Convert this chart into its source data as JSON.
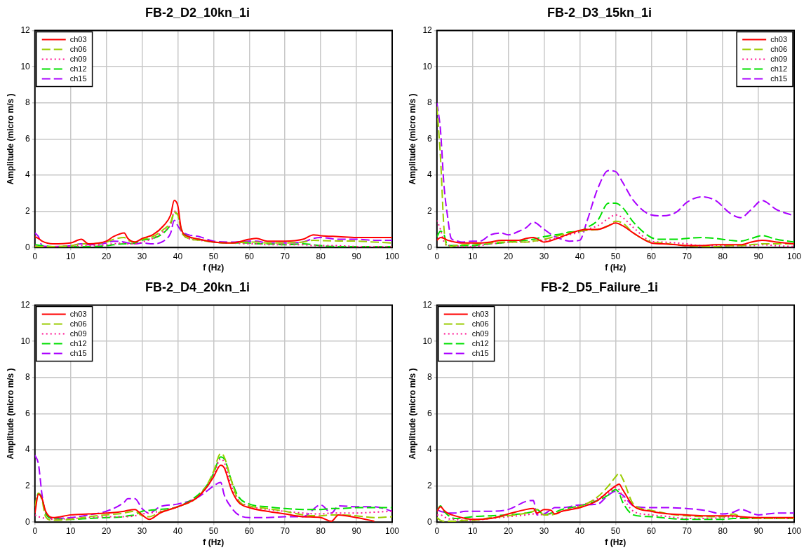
{
  "chart_data": [
    {
      "type": "line",
      "title": "FB-2_D2_10kn_1i",
      "xlabel": "f (Hz)",
      "ylabel": "Amplitude (micro m/s )",
      "xlim": [
        0,
        100
      ],
      "xticks": [
        0,
        10,
        20,
        30,
        40,
        50,
        60,
        70,
        80,
        90,
        100
      ],
      "ylim": [
        0,
        12
      ],
      "yticks": [
        0,
        2,
        4,
        6,
        8,
        10,
        12
      ],
      "grid": true,
      "legend": "top left",
      "x": [
        0,
        1,
        2,
        5,
        10,
        13,
        15,
        20,
        22,
        25,
        26,
        28,
        30,
        33,
        36,
        38,
        39,
        40,
        41,
        43,
        46,
        50,
        55,
        60,
        62,
        65,
        70,
        75,
        78,
        80,
        85,
        90,
        95,
        100
      ],
      "series": [
        {
          "name": "ch03",
          "color": "#ff0000",
          "line_style": "solid",
          "values": [
            0.6,
            0.5,
            0.35,
            0.2,
            0.25,
            0.45,
            0.2,
            0.35,
            0.6,
            0.8,
            0.5,
            0.3,
            0.5,
            0.7,
            1.2,
            1.8,
            2.6,
            2.3,
            1.0,
            0.6,
            0.45,
            0.3,
            0.25,
            0.45,
            0.5,
            0.35,
            0.35,
            0.45,
            0.7,
            0.65,
            0.6,
            0.55,
            0.55,
            0.55
          ]
        },
        {
          "name": "ch06",
          "color": "#99cc00",
          "line_style": "dashed",
          "values": [
            0.05,
            0.05,
            0.05,
            0.05,
            0.1,
            0.2,
            0.2,
            0.3,
            0.45,
            0.55,
            0.4,
            0.3,
            0.45,
            0.6,
            1.0,
            1.4,
            1.95,
            1.8,
            0.9,
            0.5,
            0.4,
            0.3,
            0.25,
            0.3,
            0.3,
            0.25,
            0.25,
            0.3,
            0.4,
            0.38,
            0.36,
            0.35,
            0.3,
            0.25
          ]
        },
        {
          "name": "ch09",
          "color": "#ff1493",
          "line_style": "dotted",
          "values": [
            0.1,
            0.05,
            0.05,
            0.05,
            0.05,
            0.1,
            0.1,
            0.15,
            0.2,
            0.25,
            0.2,
            0.2,
            0.3,
            0.5,
            0.9,
            1.3,
            2.0,
            1.9,
            0.9,
            0.5,
            0.4,
            0.3,
            0.25,
            0.2,
            0.2,
            0.15,
            0.15,
            0.15,
            0.1,
            0.1,
            0.1,
            0.05,
            0.05,
            0.05
          ]
        },
        {
          "name": "ch12",
          "color": "#00e000",
          "line_style": "dashed",
          "values": [
            0.15,
            0.12,
            0.1,
            0.05,
            0.05,
            0.05,
            0.05,
            0.1,
            0.15,
            0.2,
            0.2,
            0.25,
            0.4,
            0.5,
            0.8,
            1.3,
            1.9,
            1.8,
            1.0,
            0.6,
            0.45,
            0.3,
            0.25,
            0.25,
            0.2,
            0.2,
            0.15,
            0.2,
            0.15,
            0.1,
            0.05,
            0.05,
            0.05,
            0.05
          ]
        },
        {
          "name": "ch15",
          "color": "#aa00ff",
          "line_style": "dashed",
          "values": [
            0.8,
            0.6,
            0.1,
            0.05,
            0.1,
            0.2,
            0.15,
            0.25,
            0.35,
            0.3,
            0.25,
            0.2,
            0.25,
            0.2,
            0.35,
            0.8,
            1.5,
            1.2,
            0.9,
            0.7,
            0.6,
            0.35,
            0.3,
            0.35,
            0.35,
            0.25,
            0.25,
            0.3,
            0.5,
            0.55,
            0.45,
            0.45,
            0.4,
            0.4
          ]
        }
      ]
    },
    {
      "type": "line",
      "title": "FB-2_D3_15kn_1i",
      "xlabel": "f (Hz)",
      "ylabel": "Amplitude (micro m/s )",
      "xlim": [
        0,
        100
      ],
      "xticks": [
        0,
        10,
        20,
        30,
        40,
        50,
        60,
        70,
        80,
        90,
        100
      ],
      "ylim": [
        0,
        12
      ],
      "yticks": [
        0,
        2,
        4,
        6,
        8,
        10,
        12
      ],
      "grid": true,
      "legend": "top right",
      "x": [
        0,
        1,
        2,
        3,
        4,
        5,
        7,
        10,
        12,
        15,
        18,
        20,
        23,
        25,
        27,
        30,
        33,
        35,
        37,
        40,
        42,
        45,
        48,
        50,
        52,
        55,
        60,
        63,
        67,
        70,
        74,
        78,
        82,
        85,
        88,
        91,
        95,
        100
      ],
      "series": [
        {
          "name": "ch03",
          "color": "#ff0000",
          "line_style": "solid",
          "values": [
            0.4,
            0.55,
            0.5,
            0.4,
            0.35,
            0.3,
            0.25,
            0.25,
            0.25,
            0.3,
            0.4,
            0.4,
            0.4,
            0.5,
            0.55,
            0.3,
            0.45,
            0.6,
            0.75,
            0.95,
            1.0,
            1.0,
            1.2,
            1.35,
            1.2,
            0.8,
            0.25,
            0.2,
            0.15,
            0.1,
            0.1,
            0.15,
            0.15,
            0.15,
            0.3,
            0.4,
            0.3,
            0.2
          ]
        },
        {
          "name": "ch06",
          "color": "#99cc00",
          "line_style": "dashed",
          "values": [
            7.8,
            5.0,
            1.0,
            0.05,
            0.05,
            0.1,
            0.15,
            0.2,
            0.2,
            0.25,
            0.3,
            0.3,
            0.3,
            0.3,
            0.35,
            0.45,
            0.6,
            0.7,
            0.8,
            0.9,
            0.95,
            1.0,
            1.2,
            1.45,
            1.35,
            0.8,
            0.3,
            0.25,
            0.15,
            0.1,
            0.05,
            0.05,
            0.1,
            0.1,
            0.15,
            0.2,
            0.2,
            0.2
          ]
        },
        {
          "name": "ch09",
          "color": "#ff1493",
          "line_style": "dotted",
          "values": [
            1.5,
            1.0,
            0.3,
            0.1,
            0.1,
            0.1,
            0.05,
            0.05,
            0.1,
            0.2,
            0.25,
            0.3,
            0.3,
            0.3,
            0.35,
            0.4,
            0.5,
            0.6,
            0.7,
            0.85,
            1.0,
            1.2,
            1.6,
            1.8,
            1.65,
            1.1,
            0.35,
            0.3,
            0.25,
            0.2,
            0.1,
            0.1,
            0.1,
            0.1,
            0.1,
            0.15,
            0.1,
            0.05
          ]
        },
        {
          "name": "ch12",
          "color": "#00e000",
          "line_style": "dashed",
          "values": [
            0.6,
            0.9,
            0.7,
            0.1,
            0.1,
            0.1,
            0.1,
            0.1,
            0.15,
            0.2,
            0.25,
            0.3,
            0.35,
            0.4,
            0.45,
            0.6,
            0.7,
            0.75,
            0.85,
            0.9,
            1.1,
            1.5,
            2.45,
            2.45,
            2.2,
            1.4,
            0.55,
            0.45,
            0.45,
            0.5,
            0.55,
            0.5,
            0.4,
            0.35,
            0.5,
            0.65,
            0.45,
            0.3
          ]
        },
        {
          "name": "ch15",
          "color": "#aa00ff",
          "line_style": "dashed",
          "values": [
            8.0,
            6.5,
            3.4,
            1.7,
            0.5,
            0.4,
            0.3,
            0.35,
            0.35,
            0.7,
            0.8,
            0.7,
            0.9,
            1.1,
            1.4,
            1.0,
            0.6,
            0.45,
            0.35,
            0.4,
            1.45,
            3.25,
            4.25,
            4.2,
            3.6,
            2.6,
            1.8,
            1.75,
            1.95,
            2.5,
            2.8,
            2.6,
            1.9,
            1.65,
            2.1,
            2.6,
            2.1,
            1.75
          ]
        }
      ]
    },
    {
      "type": "line",
      "title": "FB-2_D4_20kn_1i",
      "xlabel": "f (Hz)",
      "ylabel": "Amplitude (micro m/s )",
      "xlim": [
        0,
        100
      ],
      "xticks": [
        0,
        10,
        20,
        30,
        40,
        50,
        60,
        70,
        80,
        90,
        100
      ],
      "ylim": [
        0,
        12
      ],
      "yticks": [
        0,
        2,
        4,
        6,
        8,
        10,
        12
      ],
      "grid": true,
      "legend": "top left",
      "x": [
        0,
        1,
        2,
        3,
        5,
        10,
        15,
        20,
        25,
        26,
        28,
        30,
        32,
        35,
        40,
        45,
        48,
        50,
        52,
        53,
        55,
        57,
        60,
        65,
        70,
        75,
        80,
        83,
        85,
        90,
        95,
        100
      ],
      "series": [
        {
          "name": "ch03",
          "color": "#ff0000",
          "line_style": "solid",
          "values": [
            0.5,
            1.55,
            1.3,
            0.6,
            0.25,
            0.4,
            0.45,
            0.5,
            0.6,
            0.65,
            0.7,
            0.4,
            0.15,
            0.5,
            0.85,
            1.3,
            1.9,
            2.5,
            3.15,
            3.0,
            1.8,
            1.1,
            0.8,
            0.6,
            0.45,
            0.3,
            0.25,
            0.05,
            0.4,
            0.25,
            0.05,
            null
          ]
        },
        {
          "name": "ch06",
          "color": "#99cc00",
          "line_style": "dashed",
          "values": [
            0.9,
            1.6,
            1.2,
            0.3,
            0.1,
            0.15,
            0.3,
            0.4,
            0.5,
            0.55,
            0.6,
            0.35,
            0.3,
            0.55,
            0.85,
            1.3,
            2.0,
            2.8,
            3.8,
            3.6,
            2.3,
            1.2,
            0.9,
            0.75,
            0.6,
            0.4,
            0.35,
            0.4,
            0.4,
            0.35,
            0.25,
            0.3
          ]
        },
        {
          "name": "ch09",
          "color": "#ff1493",
          "line_style": "dotted",
          "values": [
            0.4,
            0.3,
            0.25,
            0.2,
            0.15,
            0.2,
            0.25,
            0.3,
            0.3,
            0.3,
            0.35,
            0.45,
            0.5,
            0.6,
            0.85,
            1.3,
            1.9,
            2.6,
            3.5,
            3.3,
            2.0,
            1.2,
            0.9,
            0.7,
            0.6,
            0.5,
            0.45,
            0.5,
            0.5,
            0.5,
            0.55,
            0.6
          ]
        },
        {
          "name": "ch12",
          "color": "#00e000",
          "line_style": "dashed",
          "values": [
            0.8,
            1.6,
            1.3,
            0.5,
            0.2,
            0.15,
            0.2,
            0.25,
            0.3,
            0.35,
            0.4,
            0.6,
            0.65,
            0.7,
            0.85,
            1.4,
            2.0,
            2.7,
            3.6,
            3.5,
            2.3,
            1.4,
            1.0,
            0.85,
            0.75,
            0.7,
            0.7,
            0.75,
            0.75,
            0.8,
            0.8,
            0.8
          ]
        },
        {
          "name": "ch15",
          "color": "#aa00ff",
          "line_style": "dashed",
          "values": [
            3.7,
            3.2,
            1.5,
            0.5,
            0.2,
            0.25,
            0.4,
            0.6,
            1.1,
            1.3,
            1.3,
            0.75,
            0.5,
            0.85,
            1.0,
            1.3,
            1.7,
            2.0,
            2.2,
            1.5,
            0.8,
            0.4,
            0.25,
            0.25,
            0.3,
            0.3,
            0.95,
            0.5,
            0.9,
            0.85,
            0.85,
            0.6
          ]
        }
      ]
    },
    {
      "type": "line",
      "title": "FB-2_D5_Failure_1i",
      "xlabel": "f (Hz)",
      "ylabel": "Amplitude (micro m/s )",
      "xlim": [
        0,
        100
      ],
      "xticks": [
        0,
        10,
        20,
        30,
        40,
        50,
        60,
        70,
        80,
        90,
        100
      ],
      "ylim": [
        0,
        12
      ],
      "yticks": [
        0,
        2,
        4,
        6,
        8,
        10,
        12
      ],
      "grid": true,
      "legend": "top left",
      "x": [
        0,
        1,
        2,
        3,
        5,
        8,
        10,
        15,
        20,
        25,
        27,
        28,
        30,
        32,
        33,
        35,
        40,
        45,
        48,
        50,
        51,
        52,
        55,
        60,
        65,
        70,
        75,
        80,
        83,
        85,
        90,
        95,
        100
      ],
      "series": [
        {
          "name": "ch03",
          "color": "#ff0000",
          "line_style": "solid",
          "values": [
            0.6,
            0.85,
            0.65,
            0.5,
            0.35,
            0.2,
            0.15,
            0.2,
            0.45,
            0.7,
            0.75,
            0.5,
            0.7,
            0.65,
            0.45,
            0.6,
            0.8,
            1.2,
            1.7,
            2.0,
            2.1,
            1.8,
            0.9,
            0.6,
            0.45,
            0.4,
            0.35,
            0.35,
            0.35,
            0.3,
            0.25,
            0.25,
            0.25
          ]
        },
        {
          "name": "ch06",
          "color": "#99cc00",
          "line_style": "dashed",
          "values": [
            0.25,
            0.1,
            0.05,
            0.05,
            0.05,
            0.1,
            0.1,
            0.25,
            0.35,
            0.5,
            0.6,
            0.7,
            0.4,
            0.4,
            0.45,
            0.6,
            0.85,
            1.4,
            2.0,
            2.5,
            2.7,
            2.4,
            1.0,
            0.65,
            0.45,
            0.35,
            0.3,
            0.3,
            0.45,
            0.3,
            0.2,
            0.2,
            0.2
          ]
        },
        {
          "name": "ch09",
          "color": "#ff1493",
          "line_style": "dotted",
          "values": [
            0.4,
            0.4,
            0.3,
            0.2,
            0.15,
            0.1,
            0.1,
            0.2,
            0.3,
            0.4,
            0.45,
            0.45,
            0.4,
            0.45,
            0.45,
            0.6,
            0.9,
            1.3,
            1.6,
            1.9,
            1.8,
            1.4,
            0.6,
            0.4,
            0.3,
            0.2,
            0.2,
            0.25,
            0.3,
            0.25,
            0.25,
            0.2,
            0.2
          ]
        },
        {
          "name": "ch12",
          "color": "#00e000",
          "line_style": "dashed",
          "values": [
            0.6,
            0.9,
            0.6,
            0.4,
            0.2,
            0.25,
            0.3,
            0.35,
            0.4,
            0.5,
            0.6,
            0.7,
            0.4,
            0.5,
            0.55,
            0.7,
            0.9,
            1.2,
            1.5,
            1.8,
            1.6,
            1.1,
            0.4,
            0.3,
            0.2,
            0.15,
            0.15,
            0.15,
            0.2,
            0.2,
            0.2,
            0.2,
            0.2
          ]
        },
        {
          "name": "ch15",
          "color": "#aa00ff",
          "line_style": "dashed",
          "values": [
            0.7,
            0.6,
            0.55,
            0.5,
            0.5,
            0.6,
            0.6,
            0.6,
            0.7,
            1.15,
            1.2,
            0.4,
            0.45,
            0.7,
            0.8,
            0.8,
            0.95,
            1.0,
            1.5,
            1.7,
            1.6,
            1.5,
            0.9,
            0.8,
            0.8,
            0.75,
            0.65,
            0.45,
            0.55,
            0.7,
            0.4,
            0.5,
            0.5
          ]
        }
      ]
    }
  ]
}
